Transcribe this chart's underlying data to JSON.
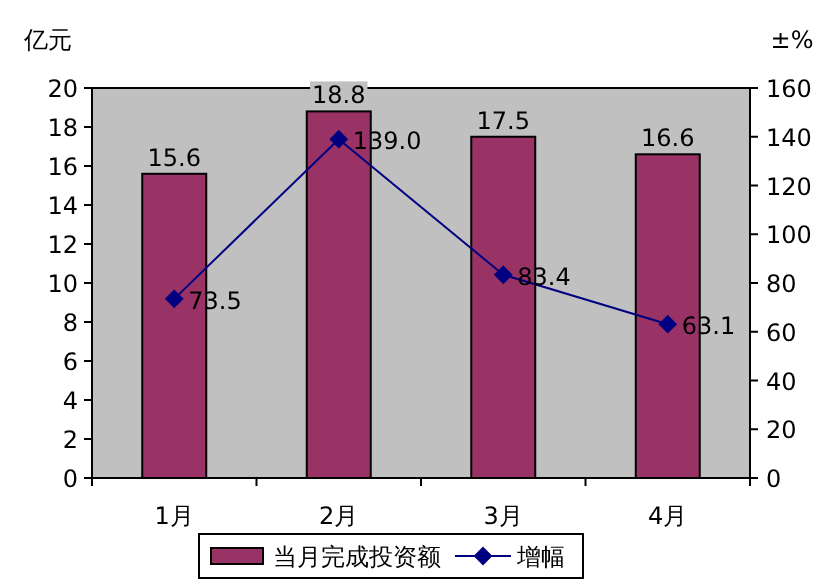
{
  "chart_data": {
    "type": "bar",
    "ylabel": "亿元",
    "y2label": "±%",
    "categories": [
      "1月",
      "2月",
      "3月",
      "4月"
    ],
    "series": [
      {
        "name": "当月完成投资额",
        "color": "#993366",
        "values": [
          15.6,
          18.8,
          17.5,
          16.6
        ],
        "value_labels": [
          "15.6",
          "18.8",
          "17.5",
          "16.6"
        ]
      },
      {
        "name": "增幅",
        "type": "line",
        "axis": "y2",
        "color": "#000080",
        "values": [
          73.5,
          139.0,
          83.4,
          63.1
        ],
        "value_labels": [
          "73.5",
          "139.0",
          "83.4",
          "63.1"
        ]
      }
    ],
    "marker": "diamond",
    "line_style": "solid",
    "ylim": [
      0,
      20
    ],
    "yticks": [
      0,
      2,
      4,
      6,
      8,
      10,
      12,
      14,
      16,
      18,
      20
    ],
    "y2lim": [
      0,
      160
    ],
    "y2ticks": [
      0,
      20,
      40,
      60,
      80,
      100,
      120,
      140,
      160
    ],
    "legend": "bottom",
    "grid": false
  }
}
